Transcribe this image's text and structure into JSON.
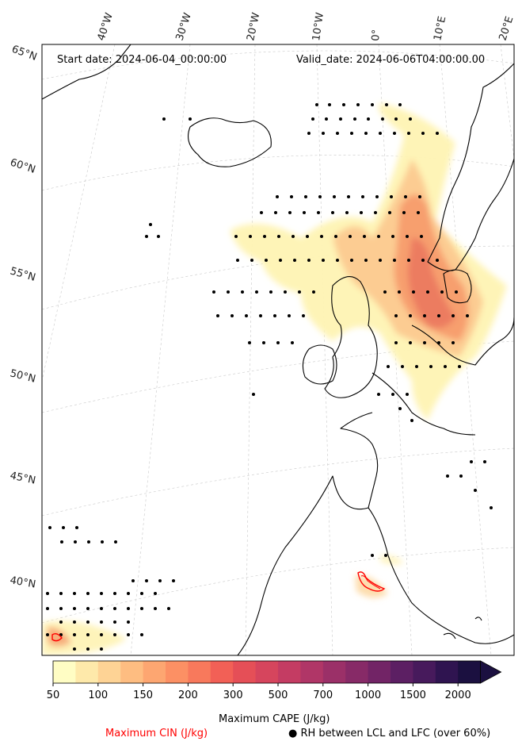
{
  "header": {
    "start_date": "Start date: 2024-06-04_00:00:00",
    "valid_date": "Valid_date: 2024-06-06T04:00:00.00"
  },
  "longitude_labels": [
    "40°W",
    "30°W",
    "20°W",
    "10°W",
    "0°",
    "10°E",
    "20°E"
  ],
  "latitude_labels": [
    "65°N",
    "60°N",
    "55°N",
    "50°N",
    "45°N",
    "40°N"
  ],
  "colorbar": {
    "ticks": [
      "50",
      "100",
      "150",
      "200",
      "300",
      "500",
      "700",
      "1000",
      "1500",
      "2000"
    ],
    "colors": [
      "#fffdc4",
      "#fee9aa",
      "#fed395",
      "#febd81",
      "#fda671",
      "#fc9064",
      "#f8795c",
      "#f26056",
      "#e54f57",
      "#d6455d",
      "#c43c63",
      "#b03667",
      "#9b3068",
      "#872a67",
      "#722466",
      "#5c1f63",
      "#471a5c",
      "#2f1450",
      "#1b1040"
    ],
    "extend": "max",
    "label": "Maximum CAPE (J/kg)"
  },
  "legend": {
    "cin_label": "Maximum CIN (J/kg)",
    "cin_color": "#ff0000",
    "rh_label": "● RH between LCL and LFC (over 60%)"
  }
}
